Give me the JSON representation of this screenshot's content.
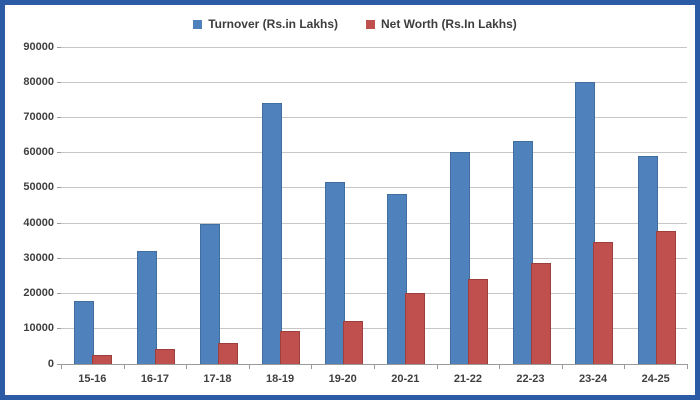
{
  "legend": {
    "turnover_label": "Turnover (Rs.in Lakhs)",
    "networth_label": "Net Worth (Rs.In Lakhs)"
  },
  "colors": {
    "frame_border": "#2b5ba5",
    "turnover": "#4f81bd",
    "networth": "#c0504d",
    "gridline": "#c6c6c6",
    "axis": "#9b9b9b",
    "text": "#3f3f3f"
  },
  "chart_data": {
    "type": "bar",
    "title": "",
    "xlabel": "",
    "ylabel": "",
    "categories": [
      "15-16",
      "16-17",
      "17-18",
      "18-19",
      "19-20",
      "20-21",
      "21-22",
      "22-23",
      "23-24",
      "24-25"
    ],
    "series": [
      {
        "name": "Turnover (Rs.in Lakhs)",
        "color": "#4f81bd",
        "values": [
          17800,
          32000,
          39700,
          74000,
          51400,
          48200,
          60000,
          63200,
          80000,
          59000
        ]
      },
      {
        "name": "Net Worth (Rs.In Lakhs)",
        "color": "#c0504d",
        "values": [
          2500,
          4000,
          5800,
          9300,
          12200,
          20000,
          24000,
          28500,
          34500,
          37700
        ]
      }
    ],
    "ylim": [
      0,
      90000
    ],
    "ytick_step": 10000,
    "ytick_labels": [
      "0",
      "10000",
      "20000",
      "30000",
      "40000",
      "50000",
      "60000",
      "70000",
      "80000",
      "90000"
    ],
    "grid": "horizontal",
    "legend_position": "top-center"
  }
}
